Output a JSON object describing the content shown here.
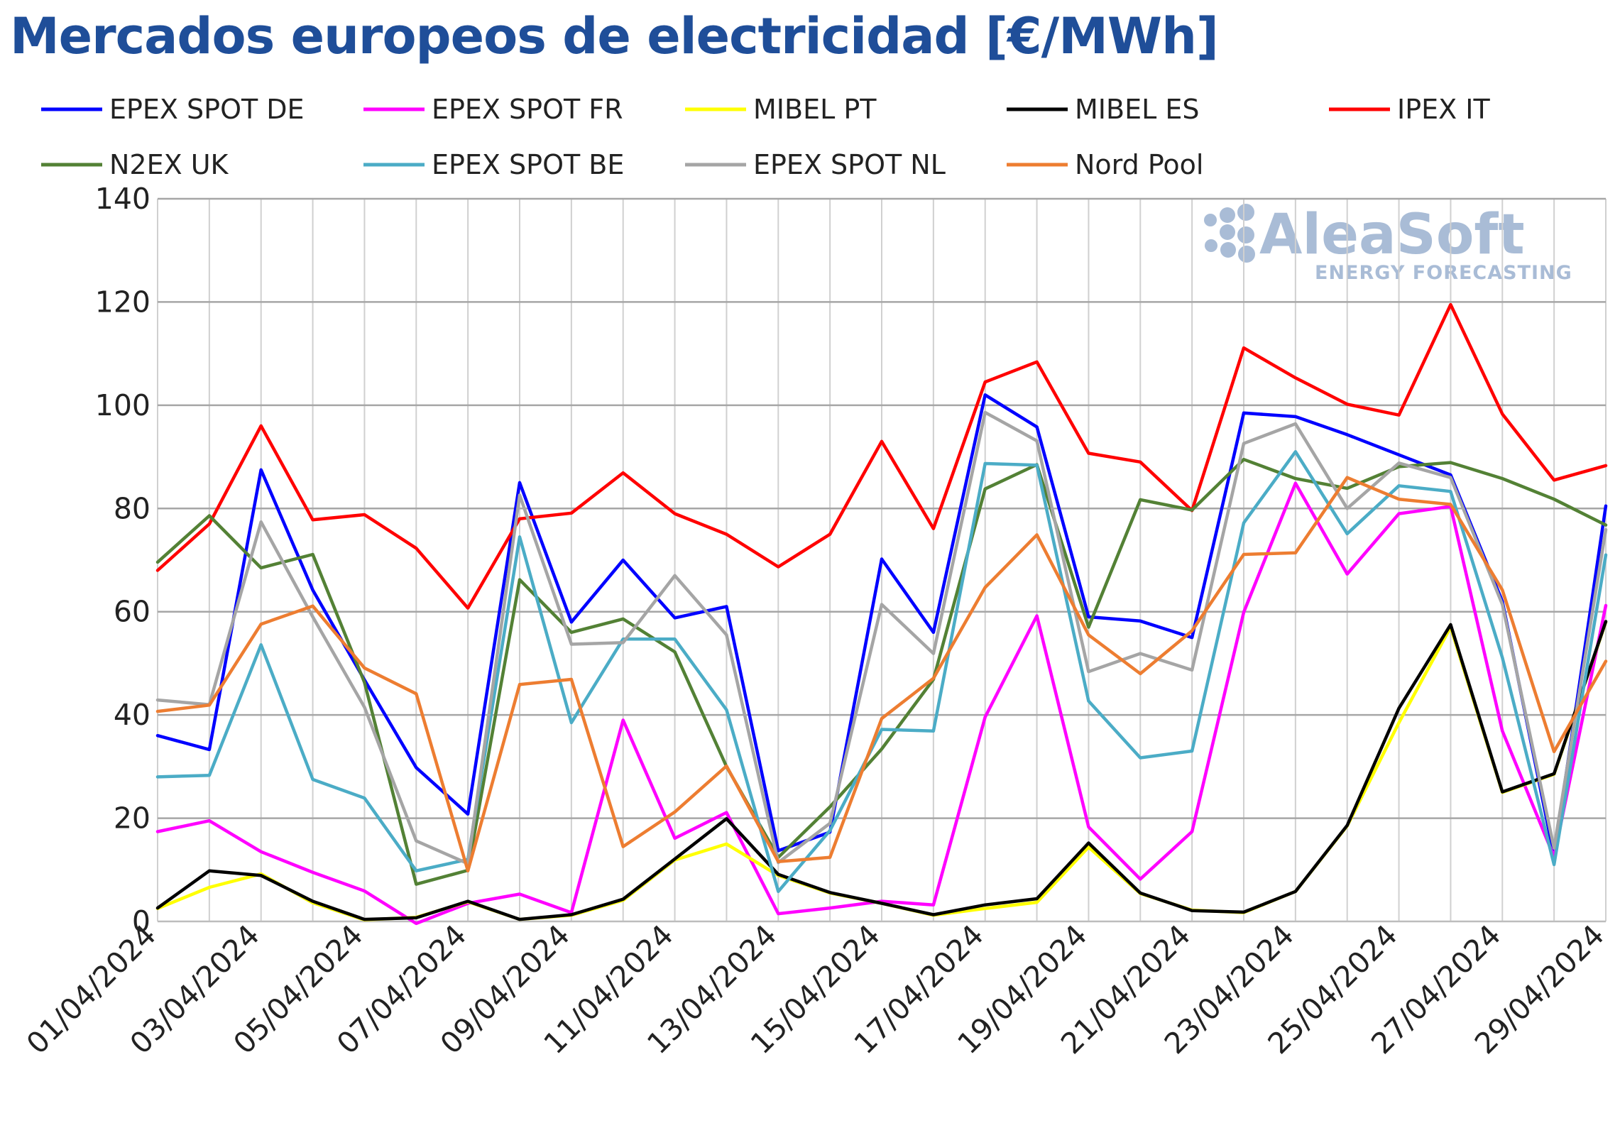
{
  "chart_data": {
    "type": "line",
    "title": "Mercados europeos de electricidad [€/MWh]",
    "ylim": [
      0,
      140
    ],
    "yticks": [
      0,
      20,
      40,
      60,
      80,
      100,
      120,
      140
    ],
    "grid": true,
    "legend_position": "top",
    "x": [
      "01/04/2024",
      "02/04/2024",
      "03/04/2024",
      "04/04/2024",
      "05/04/2024",
      "06/04/2024",
      "07/04/2024",
      "08/04/2024",
      "09/04/2024",
      "10/04/2024",
      "11/04/2024",
      "12/04/2024",
      "13/04/2024",
      "14/04/2024",
      "15/04/2024",
      "16/04/2024",
      "17/04/2024",
      "18/04/2024",
      "19/04/2024",
      "20/04/2024",
      "21/04/2024",
      "22/04/2024",
      "23/04/2024",
      "24/04/2024",
      "25/04/2024",
      "26/04/2024",
      "27/04/2024",
      "28/04/2024",
      "29/04/2024"
    ],
    "xtick_labels": [
      "01/04/2024",
      "03/04/2024",
      "05/04/2024",
      "07/04/2024",
      "09/04/2024",
      "11/04/2024",
      "13/04/2024",
      "15/04/2024",
      "17/04/2024",
      "19/04/2024",
      "21/04/2024",
      "23/04/2024",
      "25/04/2024",
      "27/04/2024",
      "29/04/2024"
    ],
    "series": [
      {
        "name": "EPEX SPOT DE",
        "color": "#0000ff",
        "values": [
          36,
          33.3,
          87.5,
          64.2,
          46.8,
          29.8,
          20.8,
          85,
          58,
          70,
          58.8,
          61,
          13.7,
          17.3,
          70.2,
          56,
          102,
          95.8,
          59,
          58.2,
          55,
          98.5,
          97.8,
          94.3,
          90.4,
          86.5,
          62,
          12.7,
          80.5
        ]
      },
      {
        "name": "EPEX SPOT FR",
        "color": "#ff00ff",
        "values": [
          17.4,
          19.5,
          13.5,
          9.5,
          5.9,
          -0.4,
          3.5,
          5.3,
          1.7,
          39,
          16.1,
          21.1,
          1.5,
          2.6,
          3.9,
          3.2,
          39.6,
          59.2,
          18.3,
          8.2,
          17.4,
          59.9,
          84.9,
          67.3,
          79,
          80.4,
          36.9,
          12.5,
          61.2
        ]
      },
      {
        "name": "MIBEL PT",
        "color": "#ffff00",
        "values": [
          2.5,
          6.6,
          9.2,
          3.6,
          0.3,
          0.8,
          3.8,
          0.4,
          1.2,
          4.1,
          11.9,
          15,
          8.9,
          5.5,
          3.5,
          1.2,
          2.5,
          3.7,
          14.4,
          5.4,
          2.2,
          1.7,
          5.8,
          18.5,
          38.5,
          57,
          25,
          28.5,
          58
        ]
      },
      {
        "name": "MIBEL ES",
        "color": "#000000",
        "values": [
          2.6,
          9.8,
          8.9,
          3.9,
          0.4,
          0.7,
          3.9,
          0.4,
          1.3,
          4.3,
          12.1,
          19.9,
          9.1,
          5.6,
          3.5,
          1.3,
          3.2,
          4.4,
          15.2,
          5.5,
          2.1,
          1.8,
          5.8,
          18.6,
          41.3,
          57.5,
          25.1,
          28.6,
          58.1
        ]
      },
      {
        "name": "IPEX IT",
        "color": "#ff0000",
        "values": [
          68,
          77,
          96,
          77.8,
          78.8,
          72.3,
          60.7,
          78,
          79.1,
          86.9,
          79,
          75,
          68.7,
          75,
          93,
          76.1,
          104.5,
          108.4,
          90.7,
          89,
          79.6,
          111.1,
          105.3,
          100.2,
          98.1,
          119.5,
          98.3,
          85.5,
          88.3
        ]
      },
      {
        "name": "N2EX UK",
        "color": "#538135",
        "values": [
          69.6,
          78.6,
          68.5,
          71.1,
          46.3,
          7.2,
          9.9,
          66.2,
          56,
          58.6,
          52.2,
          30,
          12.4,
          22.2,
          33.4,
          46.9,
          83.8,
          88.5,
          57,
          81.7,
          79.7,
          89.5,
          85.8,
          83.9,
          88.1,
          88.9,
          85.8,
          81.8,
          76.8
        ]
      },
      {
        "name": "EPEX SPOT BE",
        "color": "#4bacc6",
        "values": [
          28,
          28.3,
          53.6,
          27.5,
          23.9,
          9.8,
          12,
          74.5,
          38.5,
          54.7,
          54.7,
          41,
          5.8,
          17.6,
          37.2,
          36.9,
          88.7,
          88.4,
          42.7,
          31.7,
          33,
          77.2,
          91,
          75.1,
          84.4,
          83.3,
          51.1,
          11,
          71
        ]
      },
      {
        "name": "EPEX SPOT NL",
        "color": "#a5a5a5",
        "values": [
          42.9,
          42,
          77.4,
          59,
          41.5,
          15.6,
          11.2,
          82.6,
          53.7,
          54,
          67,
          55.5,
          11.4,
          19,
          61.4,
          51.9,
          98.6,
          93.1,
          48.4,
          51.9,
          48.7,
          92.6,
          96.4,
          80,
          88.8,
          86,
          61.4,
          14.2,
          75.9
        ]
      },
      {
        "name": "Nord Pool",
        "color": "#ed7d31",
        "values": [
          40.7,
          41.9,
          57.6,
          61.1,
          49.1,
          44.1,
          9.8,
          45.9,
          46.9,
          14.5,
          21.2,
          30.1,
          11.6,
          12.4,
          39.3,
          47.1,
          64.7,
          74.9,
          55.5,
          48,
          56.3,
          71.1,
          71.4,
          86,
          81.8,
          80.8,
          64.2,
          32.9,
          50.4
        ]
      }
    ]
  },
  "watermark": {
    "brand": "AleaSoft",
    "tagline": "ENERGY FORECASTING"
  }
}
